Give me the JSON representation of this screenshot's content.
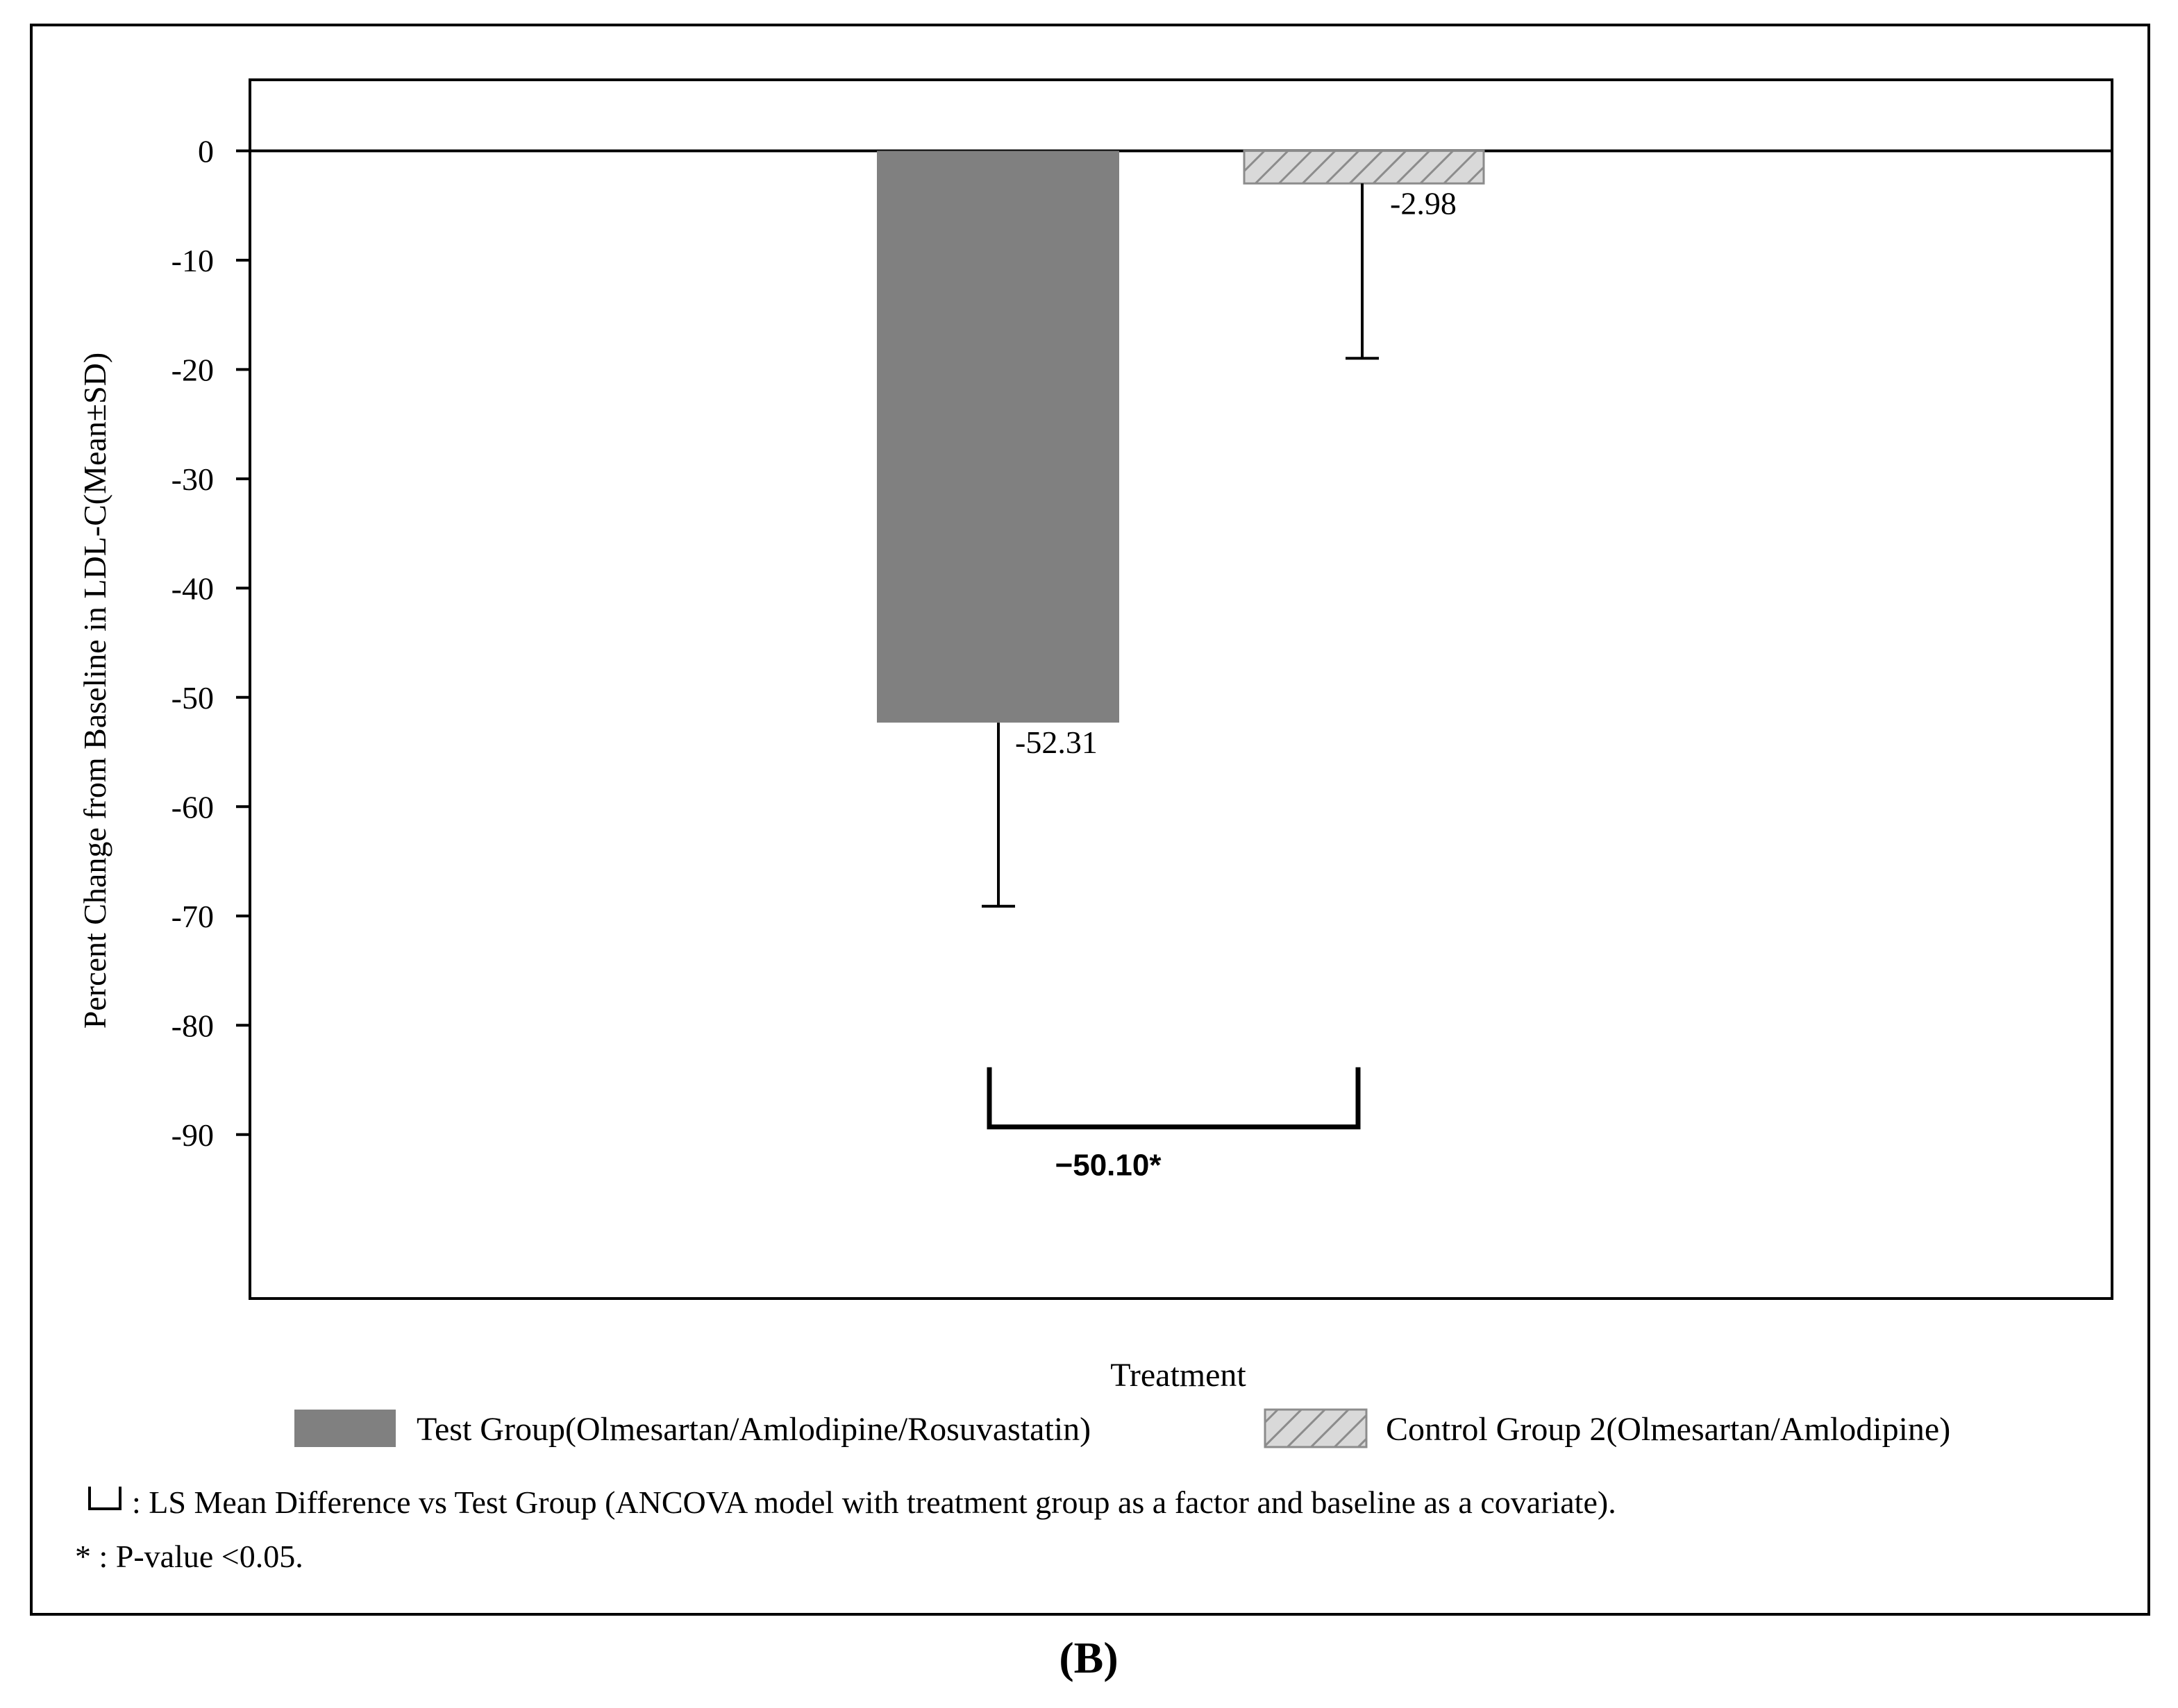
{
  "chart_data": {
    "type": "bar",
    "ylabel": "Percent Change from Baseline in LDL-C(Mean±SD)",
    "xlabel": "Treatment",
    "ylim": [
      -105,
      6.5
    ],
    "yticks": [
      0,
      -10,
      -20,
      -30,
      -40,
      -50,
      -60,
      -70,
      -80,
      -90
    ],
    "ytick_labels": [
      "0",
      "-10",
      "-20",
      "-30",
      "-40",
      "-50",
      "-60",
      "-70",
      "-80",
      "-90"
    ],
    "grid": false,
    "legend_position": "bottom",
    "series": [
      {
        "name": "Test Group(Olmesartan/Amlodipine/Rosuvastatin)",
        "value": -52.31,
        "value_label": "-52.31",
        "sd": 16.8,
        "fill": "#808080",
        "pattern": "solid"
      },
      {
        "name": "Control Group 2(Olmesartan/Amlodipine)",
        "value": -2.98,
        "value_label": "-2.98",
        "sd": 16.0,
        "fill": "#d3d3d3",
        "pattern": "hatched"
      }
    ],
    "comparison": {
      "label": "−50.10*",
      "level": -89.3
    }
  },
  "footnotes": [
    ": LS Mean Difference vs Test Group (ANCOVA model with treatment group as a factor and baseline as a covariate).",
    "* : P-value <0.05."
  ],
  "panel_label": "(B)"
}
